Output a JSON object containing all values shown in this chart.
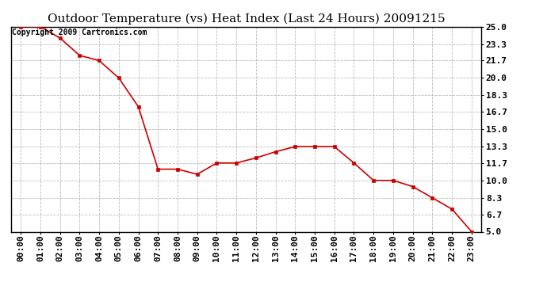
{
  "title": "Outdoor Temperature (vs) Heat Index (Last 24 Hours) 20091215",
  "copyright": "Copyright 2009 Cartronics.com",
  "x_labels": [
    "00:00",
    "01:00",
    "02:00",
    "03:00",
    "04:00",
    "05:00",
    "06:00",
    "07:00",
    "08:00",
    "09:00",
    "10:00",
    "11:00",
    "12:00",
    "13:00",
    "14:00",
    "15:00",
    "16:00",
    "17:00",
    "18:00",
    "19:00",
    "20:00",
    "21:00",
    "22:00",
    "23:00"
  ],
  "y_values": [
    25.0,
    25.0,
    23.9,
    22.2,
    21.7,
    20.0,
    17.2,
    11.1,
    11.1,
    10.6,
    11.7,
    11.7,
    12.2,
    12.8,
    13.3,
    13.3,
    13.3,
    11.7,
    10.0,
    10.0,
    9.4,
    8.3,
    7.2,
    5.0
  ],
  "y_ticks": [
    5.0,
    6.7,
    8.3,
    10.0,
    11.7,
    13.3,
    15.0,
    16.7,
    18.3,
    20.0,
    21.7,
    23.3,
    25.0
  ],
  "ylim": [
    5.0,
    25.0
  ],
  "line_color": "#cc0000",
  "marker_color": "#cc0000",
  "background_color": "#ffffff",
  "grid_color": "#aaaaaa",
  "title_fontsize": 11,
  "copyright_fontsize": 7,
  "tick_fontsize": 8,
  "ytick_fontsize": 8
}
